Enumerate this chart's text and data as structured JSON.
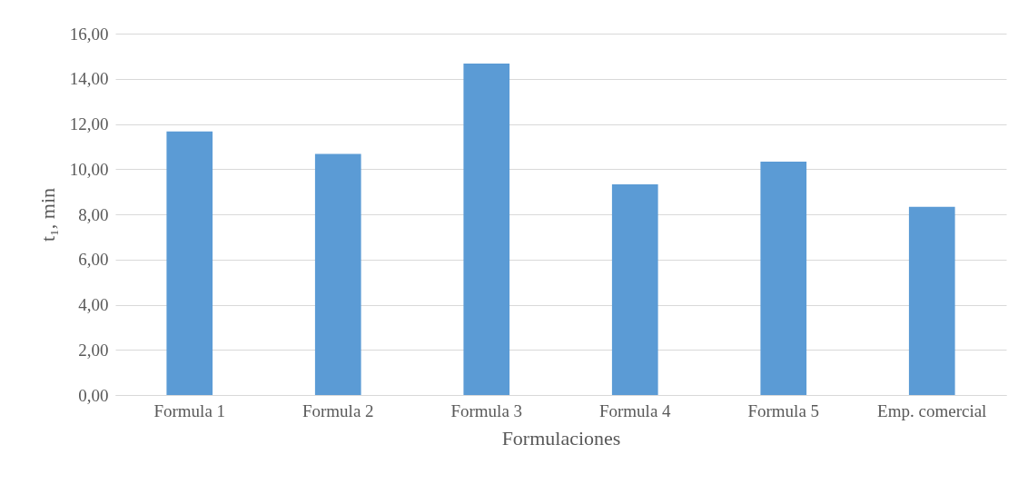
{
  "chart_data": {
    "type": "bar",
    "xlabel": "Formulaciones",
    "ylabel": "t₁, min",
    "categories": [
      "Formula 1",
      "Formula 2",
      "Formula 3",
      "Formula 4",
      "Formula 5",
      "Emp. comercial"
    ],
    "values": [
      11.67,
      10.67,
      14.67,
      9.33,
      10.33,
      8.33
    ],
    "color": "#5b9bd5",
    "ylim": [
      0,
      16
    ],
    "yticks": [
      {
        "value": 0,
        "label": "0,00"
      },
      {
        "value": 2,
        "label": "2,00"
      },
      {
        "value": 4,
        "label": "4,00"
      },
      {
        "value": 6,
        "label": "6,00"
      },
      {
        "value": 8,
        "label": "8,00"
      },
      {
        "value": 10,
        "label": "10,00"
      },
      {
        "value": 12,
        "label": "12,00"
      },
      {
        "value": 14,
        "label": "14,00"
      },
      {
        "value": 16,
        "label": "16,00"
      }
    ],
    "grid": "y"
  }
}
